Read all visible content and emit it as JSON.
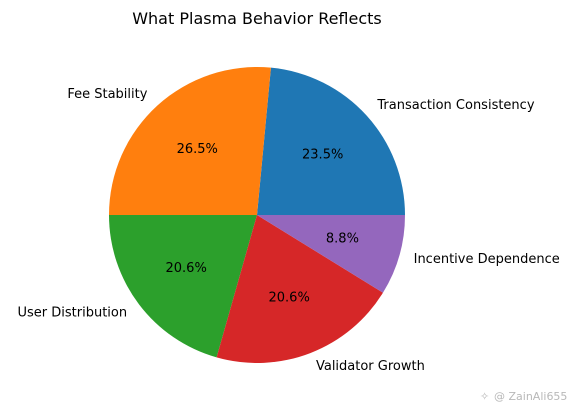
{
  "chart_data": {
    "type": "pie",
    "title": "What Plasma Behavior Reflects",
    "categories": [
      "Transaction Consistency",
      "Fee Stability",
      "User Distribution",
      "Validator Growth",
      "Incentive Dependence"
    ],
    "values": [
      23.5,
      26.5,
      20.6,
      20.6,
      8.8
    ],
    "value_labels": [
      "23.5%",
      "26.5%",
      "20.6%",
      "20.6%",
      "8.8%"
    ],
    "colors": [
      "#1f77b4",
      "#ff7f0e",
      "#2ca02c",
      "#d62728",
      "#9467bd"
    ],
    "start_angle_deg": 0,
    "direction": "counterclockwise",
    "legend": "none"
  },
  "watermark": {
    "icon": "sparkle-icon",
    "text": "@ ZainAli655"
  }
}
